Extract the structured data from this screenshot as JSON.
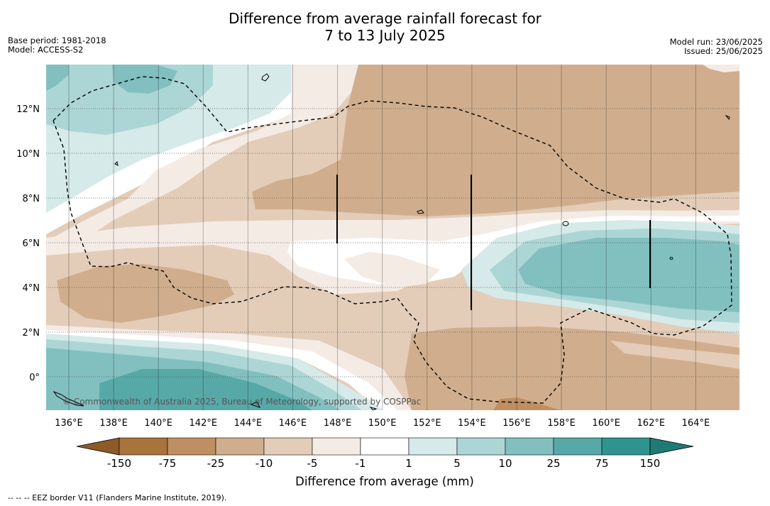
{
  "title_line1": "Difference from average rainfall forecast for",
  "title_line2": "7 to 13 July 2025",
  "base_period": "Base period: 1981-2018",
  "model": "Model: ACCESS-S2",
  "model_run": "Model run: 23/06/2025",
  "issued": "Issued: 25/06/2025",
  "copyright": "© Commonwealth of Australia 2025, Bureau of Meteorology, supported by COSPPac",
  "footnote": "--  --  -- EEZ border V11 (Flanders Marine Institute, 2019).",
  "lon_labels": [
    "136°E",
    "138°E",
    "140°E",
    "142°E",
    "144°E",
    "146°E",
    "148°E",
    "150°E",
    "152°E",
    "154°E",
    "156°E",
    "158°E",
    "160°E",
    "162°E",
    "164°E"
  ],
  "lat_labels": [
    "12°N",
    "10°N",
    "8°N",
    "6°N",
    "4°N",
    "2°N",
    "0°"
  ],
  "colorbar": {
    "title": "Difference from average (mm)",
    "ticks": [
      "-150",
      "-75",
      "-25",
      "-10",
      "-5",
      "-1",
      "1",
      "5",
      "10",
      "25",
      "75",
      "150"
    ],
    "colors": [
      "#a9733c",
      "#bf8f62",
      "#d0ae8d",
      "#e3cdb9",
      "#f4ebe5",
      "#ffffff",
      "#d5eae9",
      "#acd6d5",
      "#82c0bf",
      "#57a9a8",
      "#2f9390"
    ],
    "under_color": "#8e5a28",
    "over_color": "#1f7a76"
  },
  "colors": {
    "neg_strong": "#d0ae8d",
    "neg_mid": "#e3cdb9",
    "neg_weak": "#f4ebe5",
    "neutral": "#ffffff",
    "pos_weak": "#d5eae9",
    "pos_mid": "#acd6d5",
    "pos_strong": "#82c0bf",
    "pos_vstrong": "#57a9a8",
    "neg_vstrong": "#bf8f62"
  }
}
